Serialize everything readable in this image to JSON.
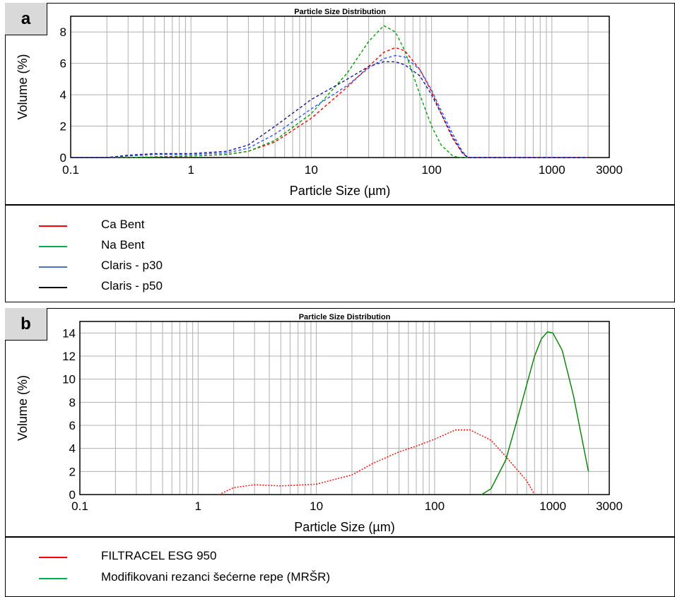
{
  "chart_data": [
    {
      "panel_label": "a",
      "type": "line",
      "title": "Particle Size Distribution",
      "xlabel": "Particle Size (µm)",
      "ylabel": "Volume (%)",
      "xscale": "log",
      "xlim": [
        0.1,
        3000
      ],
      "ylim": [
        0,
        9
      ],
      "xticks": [
        "0.1",
        "1",
        "10",
        "100",
        "1000",
        "3000"
      ],
      "yticks": [
        "0",
        "2",
        "4",
        "6",
        "8"
      ],
      "grid": true,
      "legend_position": "below",
      "series": [
        {
          "name": "Ca Bent",
          "color": "#ff0000",
          "line_style": "dashed",
          "x": [
            0.1,
            0.3,
            1,
            2,
            3,
            5,
            10,
            20,
            30,
            40,
            50,
            60,
            80,
            100,
            120,
            150,
            180,
            200,
            300,
            1000,
            2000
          ],
          "y": [
            0,
            0,
            0.1,
            0.2,
            0.4,
            1.0,
            2.5,
            4.5,
            5.8,
            6.7,
            7.0,
            6.8,
            5.6,
            4.2,
            2.8,
            1.2,
            0.3,
            0,
            0,
            0,
            0
          ]
        },
        {
          "name": "Na Bent",
          "color": "#00a000",
          "line_style": "dashed",
          "x": [
            0.1,
            0.3,
            1,
            2,
            3,
            5,
            10,
            20,
            30,
            40,
            50,
            60,
            80,
            100,
            120,
            150,
            170,
            200,
            1000,
            2000
          ],
          "y": [
            0,
            0,
            0.1,
            0.2,
            0.4,
            1.1,
            2.8,
            5.4,
            7.4,
            8.4,
            8.0,
            6.8,
            4.0,
            2.0,
            0.8,
            0.1,
            0,
            0,
            0,
            0
          ]
        },
        {
          "name": "Claris - p30",
          "color": "#3355ff",
          "line_style": "dashed",
          "x": [
            0.1,
            0.2,
            0.3,
            0.5,
            1,
            2,
            3,
            5,
            10,
            20,
            30,
            40,
            50,
            60,
            80,
            100,
            120,
            150,
            180,
            200,
            300,
            1000,
            2000
          ],
          "y": [
            0,
            0,
            0.1,
            0.2,
            0.2,
            0.3,
            0.6,
            1.5,
            3.1,
            4.6,
            5.7,
            6.3,
            6.5,
            6.4,
            5.6,
            4.3,
            3.0,
            1.5,
            0.4,
            0,
            0,
            0,
            0
          ]
        },
        {
          "name": "Claris - p50",
          "color": "#1a1a8c",
          "line_style": "dashed",
          "x": [
            0.1,
            0.2,
            0.3,
            0.5,
            1,
            2,
            3,
            5,
            10,
            20,
            30,
            40,
            50,
            60,
            80,
            100,
            120,
            150,
            180,
            200,
            300,
            1000,
            2000
          ],
          "y": [
            0,
            0,
            0.15,
            0.25,
            0.25,
            0.4,
            0.8,
            2.0,
            3.7,
            5.0,
            5.8,
            6.1,
            6.1,
            5.9,
            5.2,
            4.0,
            2.8,
            1.3,
            0.3,
            0,
            0,
            0,
            0
          ]
        }
      ],
      "legend": [
        {
          "name": "Ca Bent",
          "color": "#ff0000"
        },
        {
          "name": "Na Bent",
          "color": "#00b050"
        },
        {
          "name": "Claris - p30",
          "color": "#4472c4"
        },
        {
          "name": "Claris - p50",
          "color": "#000000"
        }
      ]
    },
    {
      "panel_label": "b",
      "type": "line",
      "title": "Particle Size Distribution",
      "xlabel": "Particle Size (µm)",
      "ylabel": "Volume (%)",
      "xscale": "log",
      "xlim": [
        0.1,
        3000
      ],
      "ylim": [
        0,
        15
      ],
      "xticks": [
        "0.1",
        "1",
        "10",
        "100",
        "1000",
        "3000"
      ],
      "yticks": [
        "0",
        "2",
        "4",
        "6",
        "8",
        "10",
        "12",
        "14"
      ],
      "grid": true,
      "legend_position": "below",
      "series": [
        {
          "name": "FILTRACEL ESG 950",
          "color": "#ff0000",
          "line_style": "dotted",
          "x": [
            1.5,
            2,
            3,
            5,
            10,
            20,
            30,
            50,
            70,
            100,
            150,
            200,
            300,
            400,
            600,
            700
          ],
          "y": [
            0,
            0.6,
            0.85,
            0.75,
            0.9,
            1.7,
            2.7,
            3.7,
            4.2,
            4.8,
            5.6,
            5.6,
            4.7,
            3.3,
            1.2,
            0
          ]
        },
        {
          "name": "Modifikovani rezanci šećerne repe (MRŠR)",
          "color": "#008000",
          "line_style": "solid",
          "x": [
            250,
            300,
            400,
            500,
            600,
            700,
            800,
            900,
            1000,
            1200,
            1500,
            2000
          ],
          "y": [
            0,
            0.5,
            3.0,
            6.5,
            9.5,
            12.0,
            13.5,
            14.1,
            14.0,
            12.5,
            8.5,
            2.0
          ]
        }
      ],
      "legend": [
        {
          "name": "FILTRACEL ESG 950",
          "color": "#ff0000"
        },
        {
          "name": "Modifikovani rezanci šećerne repe (MRŠR)",
          "color": "#00b050"
        }
      ]
    }
  ]
}
